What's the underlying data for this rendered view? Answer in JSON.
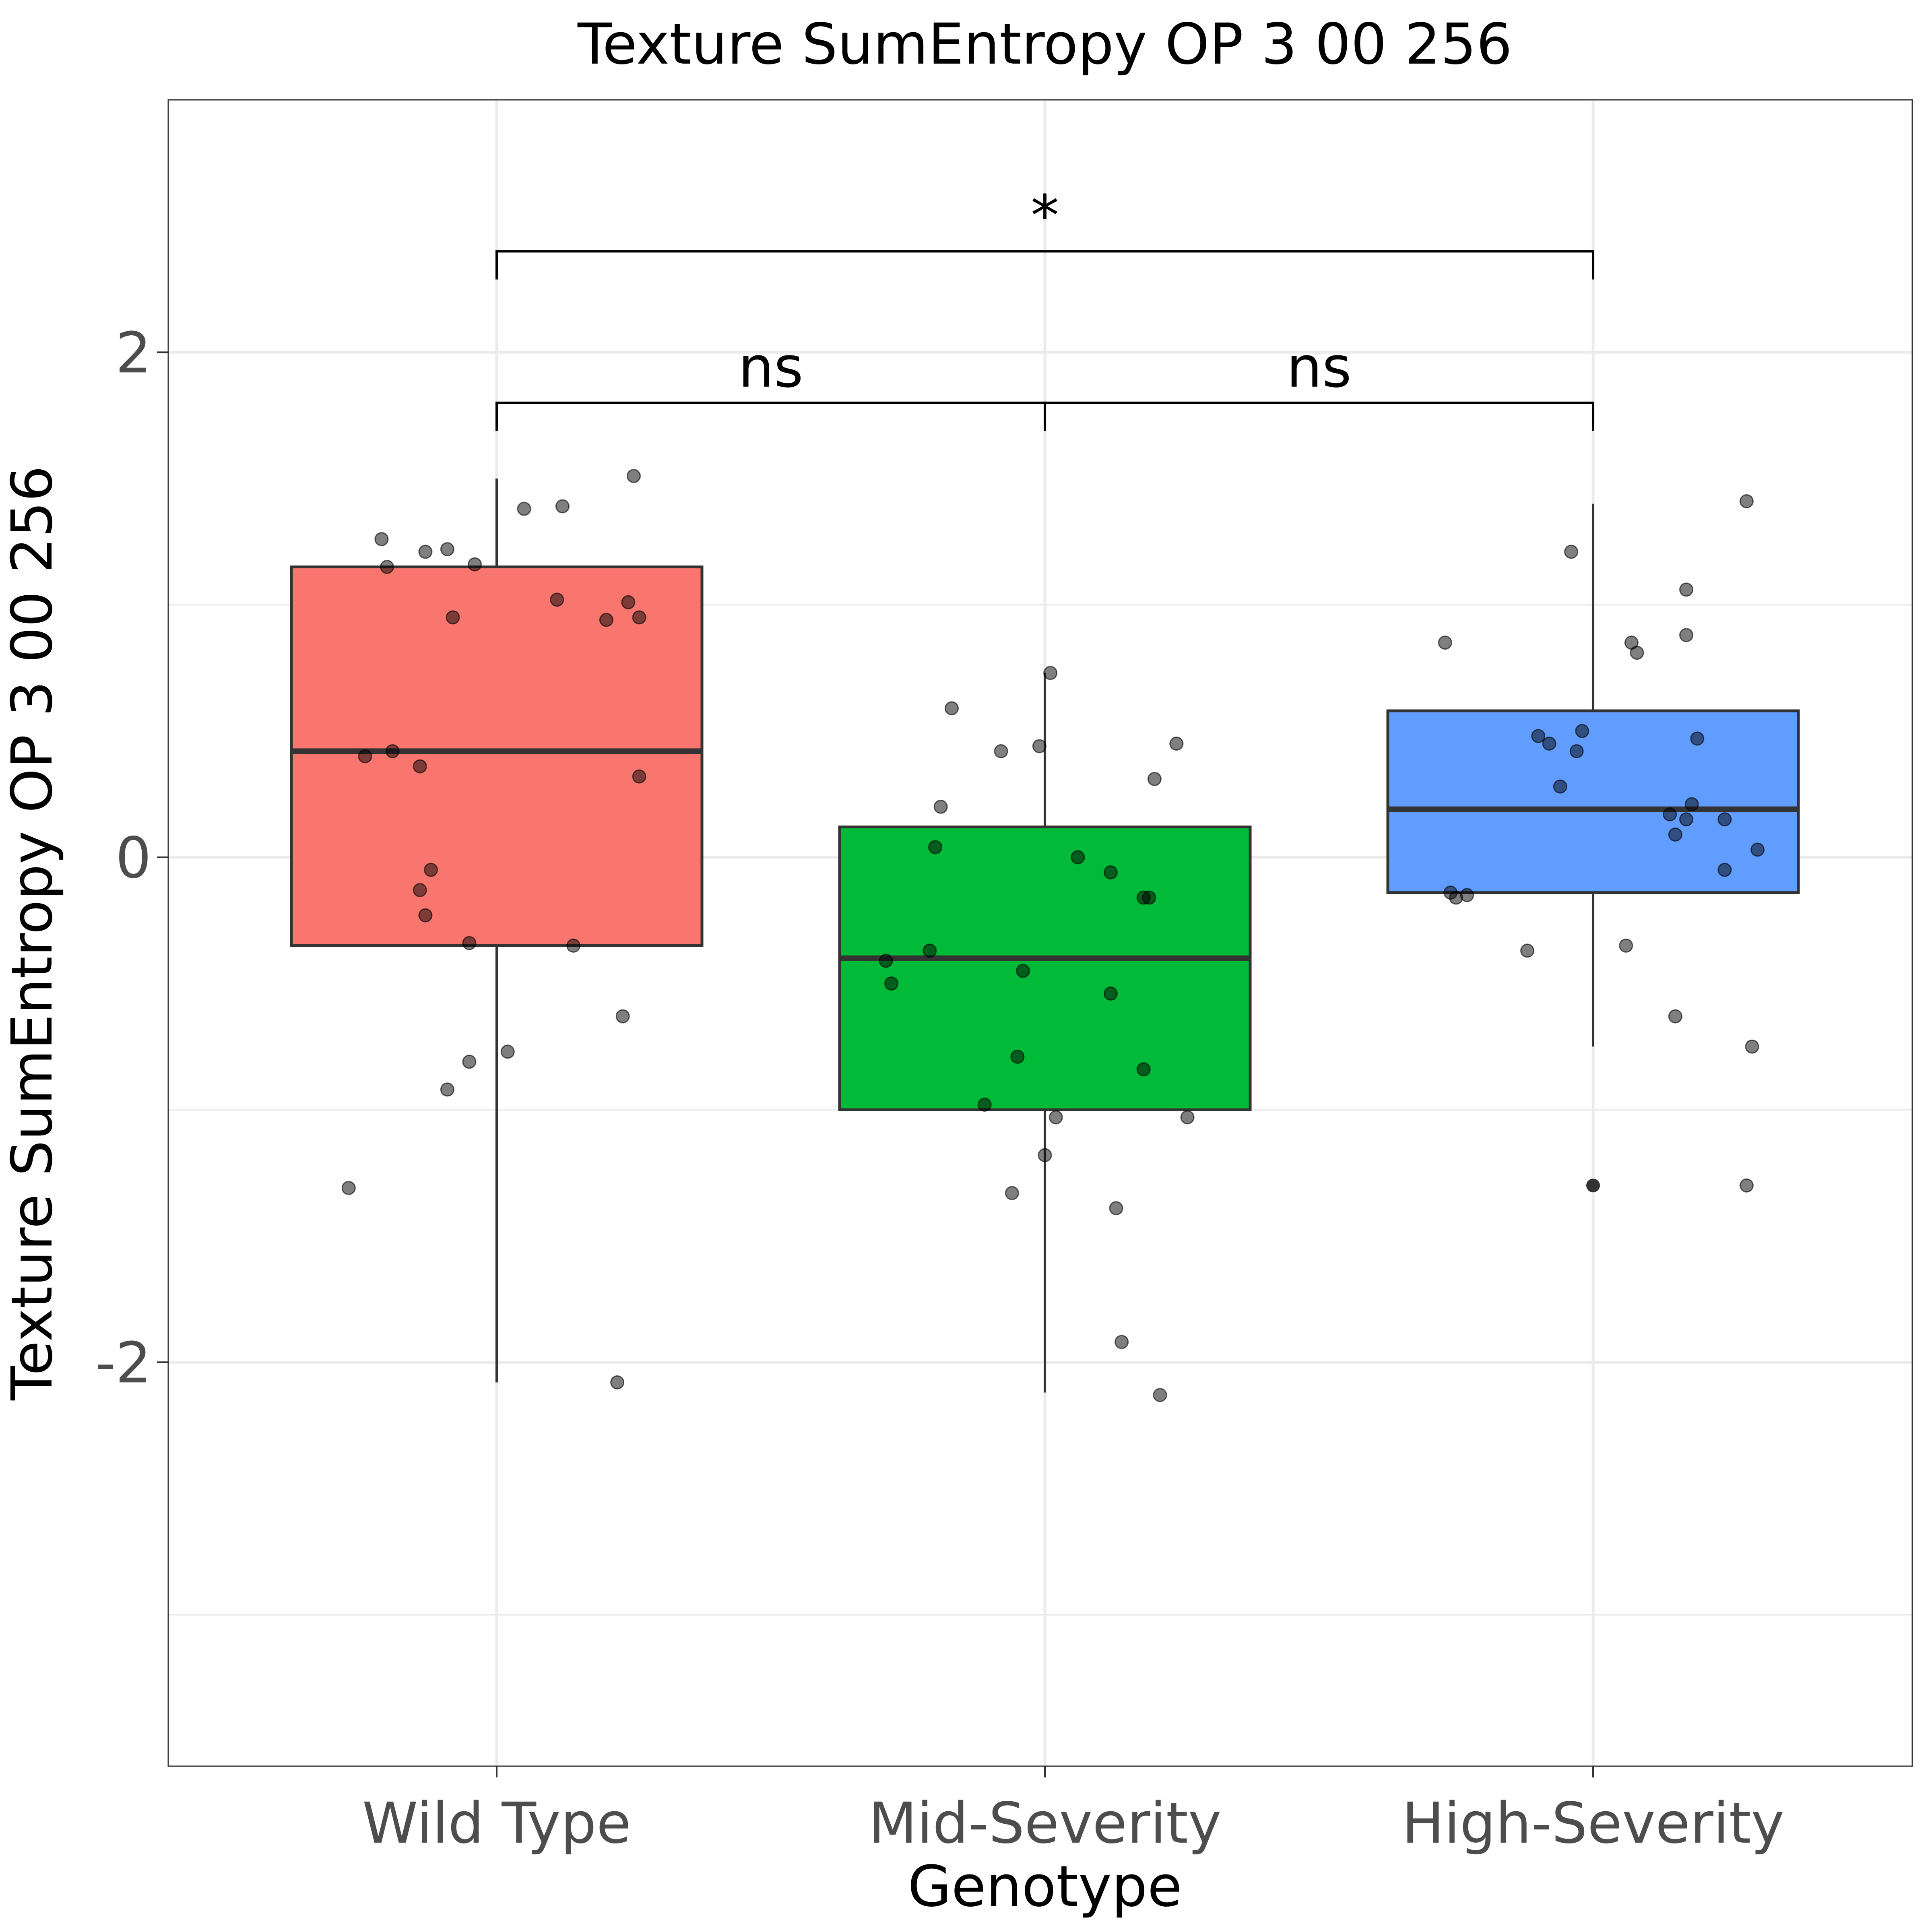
{
  "chart_data": {
    "type": "box",
    "title": "Texture SumEntropy OP 3 00 256",
    "xlabel": "Genotype",
    "ylabel": "Texture SumEntropy OP 3 00 256",
    "ylim": [
      -3.6,
      3.0
    ],
    "yticks": [
      -2,
      0,
      2
    ],
    "ytick_labels": [
      "-2",
      "0",
      "2"
    ],
    "grid": true,
    "categories": [
      "Wild Type",
      "Mid-Severity",
      "High-Severity"
    ],
    "colors": [
      "#F8766D",
      "#00BA38",
      "#619CFF"
    ],
    "boxes": [
      {
        "name": "Wild Type",
        "whisker_low": -2.08,
        "q1": -0.35,
        "median": 0.42,
        "q3": 1.15,
        "whisker_high": 1.5
      },
      {
        "name": "Mid-Severity",
        "whisker_low": -2.12,
        "q1": -1.0,
        "median": -0.4,
        "q3": 0.12,
        "whisker_high": 0.73
      },
      {
        "name": "High-Severity",
        "whisker_low": -0.75,
        "q1": -0.14,
        "median": 0.19,
        "q3": 0.58,
        "whisker_high": 1.4
      }
    ],
    "outliers": [
      {
        "group": 2,
        "y": -1.3
      }
    ],
    "points": [
      {
        "group": 0,
        "dx": -0.21,
        "y": 1.26
      },
      {
        "group": 0,
        "dx": -0.2,
        "y": 1.15
      },
      {
        "group": 0,
        "dx": -0.13,
        "y": 1.21
      },
      {
        "group": 0,
        "dx": -0.09,
        "y": 1.22
      },
      {
        "group": 0,
        "dx": -0.04,
        "y": 1.16
      },
      {
        "group": 0,
        "dx": 0.05,
        "y": 1.38
      },
      {
        "group": 0,
        "dx": 0.12,
        "y": 1.39
      },
      {
        "group": 0,
        "dx": 0.25,
        "y": 1.51
      },
      {
        "group": 0,
        "dx": -0.08,
        "y": 0.95
      },
      {
        "group": 0,
        "dx": 0.11,
        "y": 1.02
      },
      {
        "group": 0,
        "dx": 0.2,
        "y": 0.94
      },
      {
        "group": 0,
        "dx": 0.24,
        "y": 1.01
      },
      {
        "group": 0,
        "dx": 0.26,
        "y": 0.95
      },
      {
        "group": 0,
        "dx": -0.24,
        "y": 0.4
      },
      {
        "group": 0,
        "dx": -0.19,
        "y": 0.42
      },
      {
        "group": 0,
        "dx": -0.14,
        "y": 0.36
      },
      {
        "group": 0,
        "dx": 0.26,
        "y": 0.32
      },
      {
        "group": 0,
        "dx": -0.12,
        "y": -0.05
      },
      {
        "group": 0,
        "dx": -0.14,
        "y": -0.13
      },
      {
        "group": 0,
        "dx": -0.13,
        "y": -0.23
      },
      {
        "group": 0,
        "dx": -0.05,
        "y": -0.34
      },
      {
        "group": 0,
        "dx": 0.14,
        "y": -0.35
      },
      {
        "group": 0,
        "dx": 0.23,
        "y": -0.63
      },
      {
        "group": 0,
        "dx": 0.02,
        "y": -0.77
      },
      {
        "group": 0,
        "dx": -0.05,
        "y": -0.81
      },
      {
        "group": 0,
        "dx": -0.09,
        "y": -0.92
      },
      {
        "group": 0,
        "dx": -0.27,
        "y": -1.31
      },
      {
        "group": 0,
        "dx": 0.22,
        "y": -2.08
      },
      {
        "group": 1,
        "dx": 0.01,
        "y": 0.73
      },
      {
        "group": 1,
        "dx": -0.17,
        "y": 0.59
      },
      {
        "group": 1,
        "dx": -0.08,
        "y": 0.42
      },
      {
        "group": 1,
        "dx": -0.01,
        "y": 0.44
      },
      {
        "group": 1,
        "dx": 0.24,
        "y": 0.45
      },
      {
        "group": 1,
        "dx": 0.2,
        "y": 0.31
      },
      {
        "group": 1,
        "dx": -0.19,
        "y": 0.2
      },
      {
        "group": 1,
        "dx": -0.2,
        "y": 0.04
      },
      {
        "group": 1,
        "dx": 0.06,
        "y": 0.0
      },
      {
        "group": 1,
        "dx": 0.12,
        "y": -0.06
      },
      {
        "group": 1,
        "dx": 0.18,
        "y": -0.16
      },
      {
        "group": 1,
        "dx": 0.19,
        "y": -0.16
      },
      {
        "group": 1,
        "dx": -0.21,
        "y": -0.37
      },
      {
        "group": 1,
        "dx": -0.29,
        "y": -0.41
      },
      {
        "group": 1,
        "dx": -0.28,
        "y": -0.5
      },
      {
        "group": 1,
        "dx": -0.04,
        "y": -0.45
      },
      {
        "group": 1,
        "dx": 0.12,
        "y": -0.54
      },
      {
        "group": 1,
        "dx": -0.05,
        "y": -0.79
      },
      {
        "group": 1,
        "dx": 0.18,
        "y": -0.84
      },
      {
        "group": 1,
        "dx": -0.11,
        "y": -0.98
      },
      {
        "group": 1,
        "dx": 0.02,
        "y": -1.03
      },
      {
        "group": 1,
        "dx": 0.26,
        "y": -1.03
      },
      {
        "group": 1,
        "dx": 0.0,
        "y": -1.18
      },
      {
        "group": 1,
        "dx": -0.06,
        "y": -1.33
      },
      {
        "group": 1,
        "dx": 0.13,
        "y": -1.39
      },
      {
        "group": 1,
        "dx": 0.14,
        "y": -1.92
      },
      {
        "group": 1,
        "dx": 0.21,
        "y": -2.13
      },
      {
        "group": 2,
        "dx": -0.04,
        "y": 1.21
      },
      {
        "group": 2,
        "dx": 0.28,
        "y": 1.41
      },
      {
        "group": 2,
        "dx": 0.17,
        "y": 1.06
      },
      {
        "group": 2,
        "dx": -0.27,
        "y": 0.85
      },
      {
        "group": 2,
        "dx": 0.07,
        "y": 0.85
      },
      {
        "group": 2,
        "dx": 0.08,
        "y": 0.81
      },
      {
        "group": 2,
        "dx": 0.17,
        "y": 0.88
      },
      {
        "group": 2,
        "dx": -0.1,
        "y": 0.48
      },
      {
        "group": 2,
        "dx": -0.08,
        "y": 0.45
      },
      {
        "group": 2,
        "dx": -0.02,
        "y": 0.5
      },
      {
        "group": 2,
        "dx": -0.03,
        "y": 0.42
      },
      {
        "group": 2,
        "dx": 0.19,
        "y": 0.47
      },
      {
        "group": 2,
        "dx": -0.06,
        "y": 0.28
      },
      {
        "group": 2,
        "dx": 0.18,
        "y": 0.21
      },
      {
        "group": 2,
        "dx": 0.14,
        "y": 0.17
      },
      {
        "group": 2,
        "dx": 0.17,
        "y": 0.15
      },
      {
        "group": 2,
        "dx": 0.24,
        "y": 0.15
      },
      {
        "group": 2,
        "dx": 0.15,
        "y": 0.09
      },
      {
        "group": 2,
        "dx": 0.3,
        "y": 0.03
      },
      {
        "group": 2,
        "dx": 0.24,
        "y": -0.05
      },
      {
        "group": 2,
        "dx": -0.26,
        "y": -0.14
      },
      {
        "group": 2,
        "dx": -0.25,
        "y": -0.16
      },
      {
        "group": 2,
        "dx": -0.23,
        "y": -0.15
      },
      {
        "group": 2,
        "dx": -0.12,
        "y": -0.37
      },
      {
        "group": 2,
        "dx": 0.06,
        "y": -0.35
      },
      {
        "group": 2,
        "dx": 0.15,
        "y": -0.63
      },
      {
        "group": 2,
        "dx": 0.29,
        "y": -0.75
      },
      {
        "group": 2,
        "dx": 0.28,
        "y": -1.3
      }
    ],
    "comparisons": [
      {
        "from": 0,
        "to": 2,
        "y": 2.4,
        "label": "*"
      },
      {
        "from": 0,
        "to": 1,
        "y": 1.8,
        "label": "ns"
      },
      {
        "from": 1,
        "to": 2,
        "y": 1.8,
        "label": "ns"
      }
    ]
  }
}
